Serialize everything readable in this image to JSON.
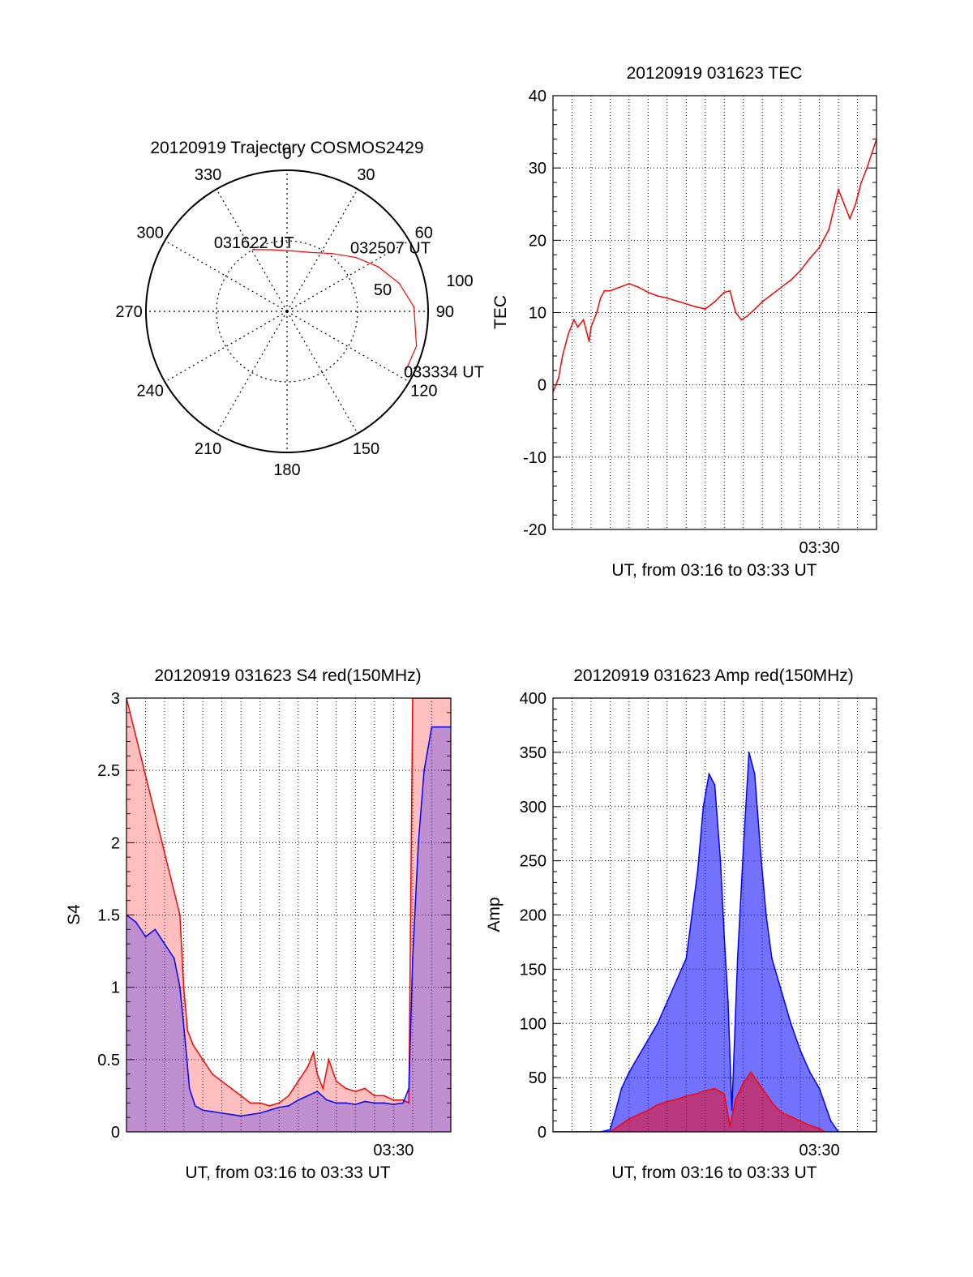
{
  "colors": {
    "red": "#ff0000",
    "blue": "#0000ff",
    "grid": "#000000"
  },
  "chart_data": [
    {
      "id": "trajectory",
      "type": "scatter",
      "title": "20120919 Trajectory COSMOS2429",
      "azimuth_labels": [
        "0",
        "30",
        "60",
        "90",
        "120",
        "150",
        "180",
        "210",
        "240",
        "270",
        "300",
        "330"
      ],
      "radius_labels": [
        "50",
        "100"
      ],
      "trajectory_points": [
        {
          "az": 331,
          "r": 50
        },
        {
          "az": 346,
          "r": 45
        },
        {
          "az": 5,
          "r": 43
        },
        {
          "az": 22,
          "r": 45
        },
        {
          "az": 38,
          "r": 52
        },
        {
          "az": 52,
          "r": 62
        },
        {
          "az": 64,
          "r": 72
        },
        {
          "az": 76,
          "r": 82
        },
        {
          "az": 88,
          "r": 90
        },
        {
          "az": 105,
          "r": 95
        },
        {
          "az": 116,
          "r": 94
        }
      ],
      "annotations": [
        {
          "text": "031622 UT",
          "az": 331,
          "r": 50
        },
        {
          "text": "032507 UT",
          "az": 52,
          "r": 62
        },
        {
          "text": "033334 UT",
          "az": 116,
          "r": 94
        }
      ]
    },
    {
      "id": "tec",
      "type": "line",
      "title": "20120919 031623 TEC",
      "xlabel": "UT, from 03:16 to 03:33 UT",
      "ylabel": "TEC",
      "xlim": [
        0,
        17
      ],
      "ylim": [
        -20,
        40
      ],
      "yticks": [
        -20,
        -10,
        0,
        10,
        20,
        30,
        40
      ],
      "xtick_labels": [
        {
          "x": 14,
          "label": "03:30"
        }
      ],
      "series": [
        {
          "color": "red",
          "x": [
            0,
            0.3,
            0.5,
            0.8,
            1.1,
            1.3,
            1.6,
            1.9,
            2.0,
            2.3,
            2.5,
            2.7,
            3.0,
            3.5,
            4.0,
            4.5,
            5.0,
            5.5,
            6.0,
            6.5,
            7.0,
            7.5,
            8.0,
            8.5,
            9.0,
            9.3,
            9.6,
            9.9,
            10.2,
            10.5,
            11.0,
            11.5,
            12.0,
            12.5,
            13.0,
            13.5,
            14.0,
            14.5,
            15.0,
            15.3,
            15.6,
            15.9,
            16.2,
            16.5,
            17.0
          ],
          "y": [
            -1,
            1,
            4,
            7,
            9,
            8,
            9,
            6,
            8,
            10,
            12,
            13,
            13,
            13.5,
            14,
            13.5,
            12.8,
            12.3,
            12,
            11.6,
            11.2,
            10.8,
            10.5,
            11.5,
            12.8,
            13,
            10,
            9,
            9.5,
            10.2,
            11.5,
            12.5,
            13.5,
            14.5,
            15.8,
            17.5,
            19,
            21.5,
            27,
            25,
            23,
            25,
            28,
            30,
            34
          ]
        }
      ]
    },
    {
      "id": "s4",
      "type": "line",
      "title": "20120919 031623 S4 red(150MHz)",
      "xlabel": "UT, from 03:16 to 03:33 UT",
      "ylabel": "S4",
      "xlim": [
        0,
        17
      ],
      "ylim": [
        0,
        3
      ],
      "yticks": [
        0,
        0.5,
        1,
        1.5,
        2,
        2.5,
        3
      ],
      "ytick_labels": [
        "0",
        "0.5",
        "1",
        "1.5",
        "2",
        "2.5",
        "3"
      ],
      "xtick_labels": [
        {
          "x": 14,
          "label": "03:30"
        }
      ],
      "series": [
        {
          "color": "red",
          "x": [
            0,
            2.8,
            3.0,
            3.2,
            3.5,
            4.0,
            4.5,
            5.0,
            5.5,
            6.0,
            6.5,
            7.0,
            7.5,
            8.0,
            8.5,
            9.0,
            9.5,
            9.8,
            10.0,
            10.3,
            10.6,
            11.0,
            11.5,
            12.0,
            12.5,
            13.0,
            13.5,
            14.0,
            14.5,
            14.8,
            15.0,
            17.0
          ],
          "y": [
            3,
            1.5,
            1.0,
            0.7,
            0.6,
            0.5,
            0.4,
            0.35,
            0.3,
            0.25,
            0.2,
            0.2,
            0.18,
            0.2,
            0.25,
            0.35,
            0.45,
            0.55,
            0.4,
            0.3,
            0.5,
            0.35,
            0.3,
            0.28,
            0.3,
            0.25,
            0.25,
            0.22,
            0.22,
            0.2,
            3,
            3
          ]
        },
        {
          "color": "blue",
          "x": [
            0,
            0.5,
            1.0,
            1.5,
            2.0,
            2.5,
            2.8,
            3.1,
            3.3,
            3.6,
            4.0,
            4.5,
            5.0,
            5.5,
            6.0,
            6.5,
            7.0,
            7.5,
            8.0,
            8.5,
            9.0,
            9.5,
            10.0,
            10.5,
            11.0,
            11.5,
            12.0,
            12.5,
            13.0,
            13.5,
            14.0,
            14.5,
            14.8,
            15.0,
            15.3,
            15.6,
            16.0,
            17.0
          ],
          "y": [
            1.5,
            1.45,
            1.35,
            1.4,
            1.3,
            1.2,
            1.0,
            0.6,
            0.3,
            0.18,
            0.15,
            0.14,
            0.13,
            0.12,
            0.11,
            0.12,
            0.13,
            0.15,
            0.17,
            0.18,
            0.22,
            0.25,
            0.28,
            0.22,
            0.2,
            0.2,
            0.19,
            0.21,
            0.2,
            0.2,
            0.19,
            0.2,
            0.3,
            1.2,
            2.0,
            2.5,
            2.8,
            2.8
          ]
        }
      ]
    },
    {
      "id": "amp",
      "type": "line",
      "title": "20120919 031623 Amp red(150MHz)",
      "xlabel": "UT, from 03:16 to 03:33 UT",
      "ylabel": "Amp",
      "xlim": [
        0,
        17
      ],
      "ylim": [
        0,
        400
      ],
      "yticks": [
        0,
        50,
        100,
        150,
        200,
        250,
        300,
        350,
        400
      ],
      "xtick_labels": [
        {
          "x": 14,
          "label": "03:30"
        }
      ],
      "series": [
        {
          "color": "blue",
          "x": [
            0,
            2.5,
            3.0,
            3.3,
            3.6,
            4.0,
            4.5,
            5.0,
            5.5,
            6.0,
            6.5,
            7.0,
            7.3,
            7.6,
            7.9,
            8.2,
            8.5,
            8.8,
            9.0,
            9.2,
            9.4,
            9.7,
            10.0,
            10.3,
            10.6,
            10.9,
            11.2,
            11.5,
            12.0,
            12.5,
            13.0,
            13.5,
            14.0,
            14.3,
            14.6,
            15.0,
            17.0
          ],
          "y": [
            0,
            0,
            2,
            20,
            40,
            55,
            70,
            85,
            100,
            120,
            140,
            160,
            200,
            240,
            300,
            330,
            320,
            250,
            180,
            120,
            20,
            160,
            260,
            350,
            330,
            260,
            200,
            160,
            130,
            100,
            75,
            55,
            40,
            25,
            10,
            0,
            0
          ]
        },
        {
          "color": "red",
          "x": [
            0,
            3.0,
            3.5,
            4.0,
            4.5,
            5.0,
            5.5,
            6.0,
            6.5,
            7.0,
            7.5,
            8.0,
            8.5,
            9.0,
            9.3,
            9.6,
            10.0,
            10.4,
            10.8,
            11.2,
            11.6,
            12.0,
            12.5,
            13.0,
            13.5,
            14.0,
            14.3,
            17.0
          ],
          "y": [
            0,
            0,
            6,
            12,
            16,
            20,
            25,
            28,
            30,
            33,
            35,
            38,
            40,
            35,
            5,
            30,
            45,
            55,
            45,
            35,
            25,
            18,
            14,
            10,
            6,
            3,
            0,
            0
          ]
        }
      ]
    }
  ]
}
